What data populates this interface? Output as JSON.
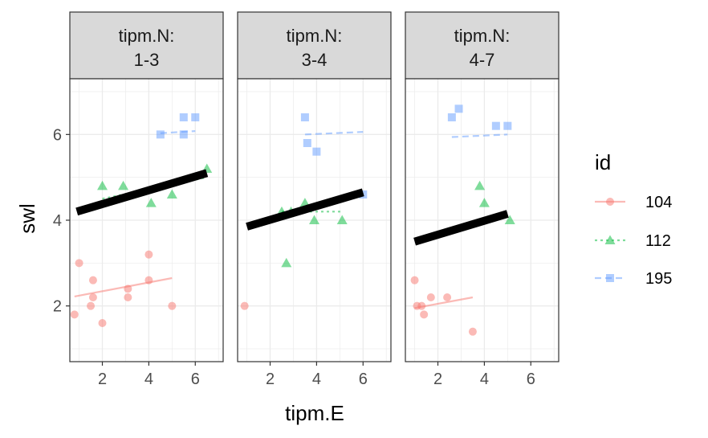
{
  "chart_data": {
    "type": "scatter",
    "xlabel": "tipm.E",
    "ylabel": "swl",
    "xlim": [
      0.6,
      7.2
    ],
    "ylim": [
      0.7,
      7.3
    ],
    "x_ticks": [
      "2",
      "4",
      "6"
    ],
    "y_ticks": [
      "2",
      "4",
      "6"
    ],
    "grid": true,
    "legend": {
      "title": "id",
      "position": "right",
      "entries": [
        {
          "label": "104",
          "color": "#f8766d",
          "shape": "circle",
          "line": "solid"
        },
        {
          "label": "112",
          "color": "#00ba38",
          "shape": "triangle",
          "line": "dotted"
        },
        {
          "label": "195",
          "color": "#619cff",
          "shape": "square",
          "line": "dashed"
        }
      ]
    },
    "panels": [
      {
        "strip_line1": "tipm.N:",
        "strip_line2": "1-3",
        "overall_fit": {
          "x": [
            0.9,
            6.5
          ],
          "y": [
            4.2,
            5.1
          ]
        },
        "groups": [
          {
            "id": "104",
            "points": [
              [
                0.8,
                1.8
              ],
              [
                1.0,
                3.0
              ],
              [
                1.5,
                2.0
              ],
              [
                1.6,
                2.2
              ],
              [
                1.6,
                2.6
              ],
              [
                2.0,
                1.6
              ],
              [
                3.1,
                2.2
              ],
              [
                3.1,
                2.4
              ],
              [
                4.0,
                3.2
              ],
              [
                4.0,
                2.6
              ],
              [
                5.0,
                2.0
              ]
            ],
            "fit": {
              "x": [
                0.8,
                5.0
              ],
              "y": [
                2.22,
                2.65
              ]
            }
          },
          {
            "id": "112",
            "points": [
              [
                2.0,
                4.8
              ],
              [
                2.9,
                4.8
              ],
              [
                4.1,
                4.4
              ],
              [
                5.0,
                4.6
              ],
              [
                6.5,
                5.2
              ]
            ],
            "fit": {
              "x": [
                2.0,
                6.5
              ],
              "y": [
                4.5,
                5.0
              ]
            }
          },
          {
            "id": "195",
            "points": [
              [
                4.5,
                6.0
              ],
              [
                5.5,
                6.0
              ],
              [
                5.5,
                6.4
              ],
              [
                6.0,
                6.4
              ]
            ],
            "fit": {
              "x": [
                4.5,
                6.0
              ],
              "y": [
                6.03,
                6.08
              ]
            }
          }
        ]
      },
      {
        "strip_line1": "tipm.N:",
        "strip_line2": "3-4",
        "overall_fit": {
          "x": [
            1.0,
            6.0
          ],
          "y": [
            3.85,
            4.65
          ]
        },
        "groups": [
          {
            "id": "104",
            "points": [
              [
                0.9,
                2.0
              ]
            ],
            "fit": null
          },
          {
            "id": "112",
            "points": [
              [
                2.5,
                4.2
              ],
              [
                2.7,
                3.0
              ],
              [
                2.9,
                4.2
              ],
              [
                3.5,
                4.4
              ],
              [
                3.9,
                4.0
              ],
              [
                5.1,
                4.0
              ]
            ],
            "fit": {
              "x": [
                2.5,
                5.1
              ],
              "y": [
                4.2,
                4.2
              ]
            }
          },
          {
            "id": "195",
            "points": [
              [
                3.5,
                6.4
              ],
              [
                3.6,
                5.8
              ],
              [
                4.0,
                5.6
              ],
              [
                6.0,
                4.6
              ]
            ],
            "fit": {
              "x": [
                3.5,
                6.0
              ],
              "y": [
                6.0,
                6.06
              ]
            }
          }
        ]
      },
      {
        "strip_line1": "tipm.N:",
        "strip_line2": "4-7",
        "overall_fit": {
          "x": [
            1.0,
            5.0
          ],
          "y": [
            3.5,
            4.15
          ]
        },
        "groups": [
          {
            "id": "104",
            "points": [
              [
                1.0,
                2.6
              ],
              [
                1.1,
                2.0
              ],
              [
                1.3,
                2.0
              ],
              [
                1.4,
                1.8
              ],
              [
                1.7,
                2.2
              ],
              [
                2.4,
                2.2
              ],
              [
                3.5,
                1.4
              ]
            ],
            "fit": {
              "x": [
                1.0,
                3.5
              ],
              "y": [
                1.95,
                2.2
              ]
            }
          },
          {
            "id": "112",
            "points": [
              [
                3.8,
                4.8
              ],
              [
                4.0,
                4.4
              ],
              [
                5.1,
                4.0
              ]
            ],
            "fit": null
          },
          {
            "id": "195",
            "points": [
              [
                2.6,
                6.4
              ],
              [
                2.9,
                6.6
              ],
              [
                4.5,
                6.2
              ],
              [
                5.0,
                6.2
              ]
            ],
            "fit": {
              "x": [
                2.6,
                5.0
              ],
              "y": [
                5.94,
                6.0
              ]
            }
          }
        ]
      }
    ]
  }
}
